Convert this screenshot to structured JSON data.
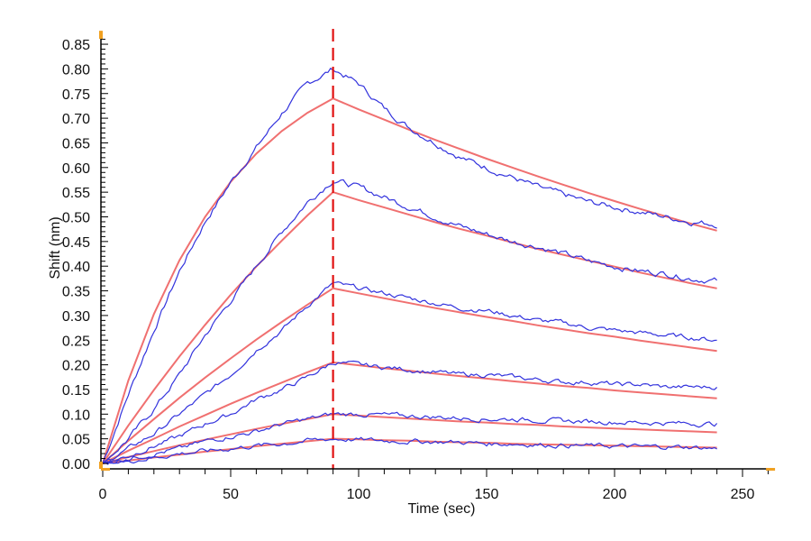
{
  "chart_data": {
    "type": "line",
    "title": "",
    "xlabel": "Time (sec)",
    "ylabel": "Shift (nm)",
    "xlim": [
      0,
      262
    ],
    "ylim": [
      -0.01,
      0.87
    ],
    "xticks": [
      "0",
      "50",
      "100",
      "150",
      "200",
      "250"
    ],
    "xtick_values": [
      0,
      50,
      100,
      150,
      200,
      250
    ],
    "yticks": [
      "0.00",
      "0.05",
      "0.10",
      "0.15",
      "0.20",
      "0.25",
      "0.30",
      "0.35",
      "0.40",
      "0.45",
      "0.50",
      "0.55",
      "0.60",
      "0.65",
      "0.70",
      "0.75",
      "0.80",
      "0.85"
    ],
    "ytick_values": [
      0,
      0.05,
      0.1,
      0.15,
      0.2,
      0.25,
      0.3,
      0.35,
      0.4,
      0.45,
      0.5,
      0.55,
      0.6,
      0.65,
      0.7,
      0.75,
      0.8,
      0.85
    ],
    "grid": false,
    "legend": "none",
    "annotations": [
      {
        "type": "vertical-dashed-line",
        "x": 90,
        "color": "#e01010"
      }
    ],
    "x": [
      0,
      10,
      20,
      30,
      40,
      50,
      60,
      70,
      80,
      90,
      100,
      110,
      120,
      130,
      140,
      150,
      160,
      170,
      180,
      190,
      200,
      210,
      220,
      230,
      240
    ],
    "colors": {
      "data": "#3333dd",
      "fit": "#f07070",
      "marker": "#f0a020"
    },
    "series": [
      {
        "name": "data-1",
        "kind": "data",
        "values": [
          0,
          0.14,
          0.27,
          0.39,
          0.49,
          0.57,
          0.64,
          0.71,
          0.77,
          0.8,
          0.77,
          0.72,
          0.68,
          0.65,
          0.62,
          0.6,
          0.58,
          0.56,
          0.545,
          0.53,
          0.52,
          0.51,
          0.5,
          0.49,
          0.485
        ]
      },
      {
        "name": "data-2",
        "kind": "data",
        "values": [
          0,
          0.05,
          0.11,
          0.18,
          0.26,
          0.33,
          0.4,
          0.47,
          0.53,
          0.575,
          0.56,
          0.54,
          0.52,
          0.5,
          0.48,
          0.465,
          0.45,
          0.44,
          0.425,
          0.41,
          0.4,
          0.39,
          0.385,
          0.375,
          0.37
        ]
      },
      {
        "name": "data-3",
        "kind": "data",
        "values": [
          0,
          0.03,
          0.06,
          0.1,
          0.14,
          0.18,
          0.23,
          0.27,
          0.32,
          0.365,
          0.355,
          0.345,
          0.335,
          0.325,
          0.315,
          0.31,
          0.3,
          0.29,
          0.285,
          0.275,
          0.27,
          0.265,
          0.26,
          0.255,
          0.25
        ]
      },
      {
        "name": "data-4",
        "kind": "data",
        "values": [
          0,
          0.015,
          0.035,
          0.055,
          0.08,
          0.1,
          0.13,
          0.15,
          0.175,
          0.205,
          0.2,
          0.195,
          0.19,
          0.185,
          0.18,
          0.18,
          0.175,
          0.17,
          0.165,
          0.165,
          0.16,
          0.16,
          0.155,
          0.155,
          0.155
        ]
      },
      {
        "name": "data-5",
        "kind": "data",
        "values": [
          0,
          0.01,
          0.02,
          0.03,
          0.045,
          0.055,
          0.065,
          0.08,
          0.09,
          0.1,
          0.1,
          0.098,
          0.096,
          0.094,
          0.092,
          0.09,
          0.09,
          0.088,
          0.086,
          0.085,
          0.084,
          0.083,
          0.082,
          0.081,
          0.08
        ]
      },
      {
        "name": "data-6",
        "kind": "data",
        "values": [
          0,
          0.005,
          0.012,
          0.02,
          0.025,
          0.03,
          0.036,
          0.04,
          0.046,
          0.05,
          0.048,
          0.046,
          0.045,
          0.044,
          0.043,
          0.04,
          0.04,
          0.038,
          0.037,
          0.036,
          0.035,
          0.034,
          0.034,
          0.033,
          0.03
        ]
      },
      {
        "name": "fit-1",
        "kind": "fit",
        "values": [
          0,
          0.168,
          0.303,
          0.412,
          0.5,
          0.571,
          0.628,
          0.674,
          0.711,
          0.74,
          0.718,
          0.697,
          0.676,
          0.656,
          0.637,
          0.618,
          0.6,
          0.582,
          0.565,
          0.548,
          0.532,
          0.516,
          0.501,
          0.486,
          0.472
        ]
      },
      {
        "name": "fit-2",
        "kind": "fit",
        "values": [
          0,
          0.077,
          0.149,
          0.217,
          0.281,
          0.342,
          0.399,
          0.452,
          0.503,
          0.55,
          0.534,
          0.519,
          0.504,
          0.489,
          0.475,
          0.462,
          0.448,
          0.435,
          0.423,
          0.411,
          0.399,
          0.387,
          0.376,
          0.365,
          0.355
        ]
      },
      {
        "name": "fit-3",
        "kind": "fit",
        "values": [
          0,
          0.046,
          0.09,
          0.133,
          0.174,
          0.213,
          0.251,
          0.287,
          0.322,
          0.355,
          0.345,
          0.335,
          0.325,
          0.315,
          0.306,
          0.297,
          0.289,
          0.28,
          0.272,
          0.264,
          0.257,
          0.249,
          0.242,
          0.235,
          0.228
        ]
      },
      {
        "name": "fit-4",
        "kind": "fit",
        "values": [
          0,
          0.026,
          0.05,
          0.075,
          0.098,
          0.121,
          0.143,
          0.164,
          0.185,
          0.205,
          0.199,
          0.193,
          0.188,
          0.182,
          0.177,
          0.172,
          0.167,
          0.162,
          0.157,
          0.153,
          0.148,
          0.144,
          0.14,
          0.136,
          0.132
        ]
      },
      {
        "name": "fit-5",
        "kind": "fit",
        "values": [
          0,
          0.013,
          0.025,
          0.037,
          0.048,
          0.059,
          0.07,
          0.08,
          0.09,
          0.1,
          0.097,
          0.094,
          0.091,
          0.088,
          0.085,
          0.083,
          0.08,
          0.078,
          0.075,
          0.073,
          0.071,
          0.069,
          0.067,
          0.065,
          0.063
        ]
      },
      {
        "name": "fit-6",
        "kind": "fit",
        "values": [
          0,
          0.006,
          0.012,
          0.018,
          0.024,
          0.029,
          0.035,
          0.04,
          0.045,
          0.05,
          0.049,
          0.047,
          0.046,
          0.044,
          0.043,
          0.042,
          0.04,
          0.039,
          0.038,
          0.037,
          0.036,
          0.035,
          0.034,
          0.033,
          0.032
        ]
      }
    ]
  }
}
